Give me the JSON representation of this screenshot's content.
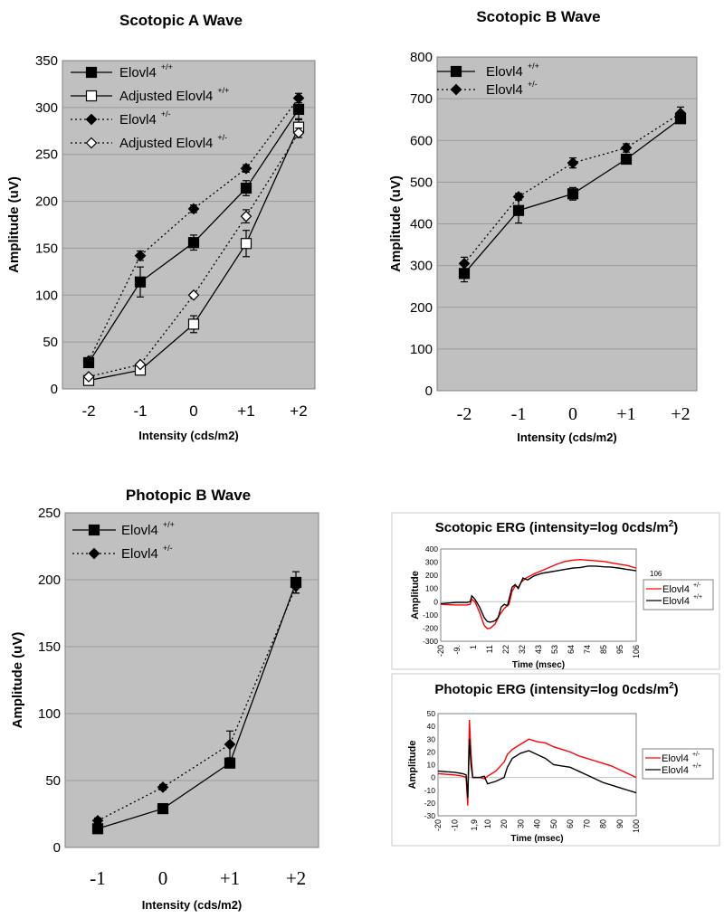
{
  "chart_data": [
    {
      "type": "line",
      "title": "Scotopic A Wave",
      "xlabel": "Intensity (cds/m2)",
      "ylabel": "Amplitude (uV)",
      "categories": [
        "-2",
        "-1",
        "0",
        "+1",
        "+2"
      ],
      "ylim": [
        0,
        350
      ],
      "yticks": [
        "0",
        "50",
        "100",
        "150",
        "200",
        "250",
        "300",
        "350"
      ],
      "grid": true,
      "legend_position": "top-left",
      "series": [
        {
          "name": "Elovl4",
          "genotype": "+/+",
          "marker": "filled-square",
          "line": "solid",
          "values": [
            28,
            114,
            156,
            214,
            298
          ],
          "error": [
            3,
            16,
            8,
            8,
            10
          ]
        },
        {
          "name": "Adjusted Elovl4",
          "genotype": "+/+",
          "marker": "open-square",
          "line": "solid",
          "values": [
            9,
            20,
            69,
            155,
            279
          ],
          "error": [
            2,
            3,
            9,
            14,
            8
          ]
        },
        {
          "name": "Elovl4",
          "genotype": "+/-",
          "marker": "filled-diamond",
          "line": "dotted",
          "values": [
            30,
            142,
            192,
            235,
            310
          ],
          "error": [
            2,
            5,
            4,
            4,
            5
          ]
        },
        {
          "name": "Adjusted Elovl4",
          "genotype": "+/-",
          "marker": "open-diamond",
          "line": "dotted",
          "values": [
            13,
            26,
            100,
            184,
            273
          ],
          "error": [
            2,
            2,
            2,
            7,
            5
          ]
        }
      ]
    },
    {
      "type": "line",
      "title": "Scotopic B Wave",
      "xlabel": "Intensity (cds/m2)",
      "ylabel": "Amplitude (uV)",
      "categories": [
        "-2",
        "-1",
        "0",
        "+1",
        "+2"
      ],
      "ylim": [
        0,
        800
      ],
      "yticks": [
        "0",
        "100",
        "200",
        "300",
        "400",
        "500",
        "600",
        "700",
        "800"
      ],
      "grid": true,
      "legend_position": "top-left",
      "series": [
        {
          "name": "Elovl4",
          "genotype": "+/+",
          "marker": "filled-square",
          "line": "solid",
          "values": [
            281,
            432,
            472,
            555,
            652
          ],
          "error": [
            20,
            30,
            15,
            8,
            8
          ]
        },
        {
          "name": "Elovl4",
          "genotype": "+/-",
          "marker": "filled-diamond",
          "line": "dotted",
          "values": [
            305,
            465,
            546,
            582,
            665
          ],
          "error": [
            15,
            8,
            12,
            10,
            15
          ]
        }
      ]
    },
    {
      "type": "line",
      "title": "Photopic B Wave",
      "xlabel": "Intensity (cds/m2)",
      "ylabel": "Amplitude (uV)",
      "categories": [
        "-1",
        "0",
        "+1",
        "+2"
      ],
      "ylim": [
        0,
        250
      ],
      "yticks": [
        "0",
        "50",
        "100",
        "150",
        "200",
        "250"
      ],
      "grid": true,
      "legend_position": "top-left",
      "series": [
        {
          "name": "Elovl4",
          "genotype": "+/+",
          "marker": "filled-square",
          "line": "solid",
          "values": [
            14,
            29,
            63,
            198
          ],
          "error": [
            2,
            2,
            2,
            8
          ]
        },
        {
          "name": "Elovl4",
          "genotype": "+/-",
          "marker": "filled-diamond",
          "line": "dotted",
          "values": [
            20,
            45,
            77,
            195
          ],
          "error": [
            2,
            2,
            10,
            5
          ]
        }
      ]
    },
    {
      "type": "line",
      "title_main": "Scotopic ERG (intensity=log 0cds/m",
      "title_sup": "2",
      "title_end": ")",
      "xlabel": "Time (msec)",
      "ylabel": "Amplitude",
      "xlim": [
        -20,
        106
      ],
      "xtick_labels": [
        "-20",
        "-9.",
        "1",
        "11",
        "22",
        "32",
        "43",
        "53",
        "64",
        "74",
        "85",
        "95",
        "106"
      ],
      "ylim": [
        -300,
        400
      ],
      "yticks": [
        "-300",
        "-200",
        "-100",
        "0",
        "100",
        "200",
        "300",
        "400"
      ],
      "legend_note": "106",
      "legend_position": "right",
      "series": [
        {
          "name": "Elovl4",
          "genotype": "+/-",
          "color": "#ff0000",
          "x": [
            -20,
            -10,
            -3,
            -1,
            0,
            2,
            5,
            8,
            10,
            12,
            15,
            18,
            21,
            24,
            26,
            28,
            30,
            32,
            35,
            40,
            45,
            50,
            55,
            60,
            65,
            70,
            75,
            80,
            85,
            90,
            95,
            100,
            106
          ],
          "y": [
            -20,
            -25,
            -25,
            -20,
            20,
            0,
            -80,
            -180,
            -205,
            -200,
            -170,
            -100,
            -50,
            -20,
            80,
            120,
            110,
            150,
            180,
            210,
            235,
            260,
            285,
            305,
            315,
            320,
            315,
            310,
            305,
            295,
            285,
            275,
            255
          ]
        },
        {
          "name": "Elovl4",
          "genotype": "+/+",
          "color": "#000000",
          "x": [
            -20,
            -10,
            -3,
            -1,
            0,
            2,
            5,
            8,
            10,
            12,
            15,
            17,
            19,
            21,
            23,
            26,
            28,
            30,
            33,
            36,
            40,
            45,
            50,
            55,
            60,
            65,
            70,
            75,
            80,
            85,
            90,
            95,
            100,
            106
          ],
          "y": [
            -15,
            -5,
            -5,
            0,
            45,
            20,
            -40,
            -120,
            -150,
            -155,
            -145,
            -120,
            -40,
            -20,
            -30,
            110,
            130,
            100,
            180,
            165,
            195,
            215,
            225,
            235,
            245,
            255,
            260,
            270,
            270,
            265,
            262,
            255,
            245,
            235
          ]
        }
      ]
    },
    {
      "type": "line",
      "title_main": "Photopic ERG (intensity=log 0cds/m",
      "title_sup": "2",
      "title_end": ")",
      "xlabel": "Time (msec)",
      "ylabel": "Amplitude",
      "xlim": [
        -20,
        100
      ],
      "xtick_values": [
        -20,
        -10,
        1.9,
        10,
        20,
        30,
        40,
        50,
        60,
        70,
        80,
        90,
        100
      ],
      "xtick_labels": [
        "-20",
        "-10",
        "1,9",
        "10",
        "20",
        "30",
        "40",
        "50",
        "60",
        "70",
        "80",
        "90",
        "100"
      ],
      "ylim": [
        -30,
        50
      ],
      "yticks": [
        "-30",
        "-20",
        "-10",
        "0",
        "10",
        "20",
        "30",
        "40",
        "50"
      ],
      "legend_position": "right",
      "series": [
        {
          "name": "Elovl4",
          "genotype": "+/-",
          "color": "#ff0000",
          "x": [
            -20,
            -10,
            -5,
            -3,
            -2,
            -1,
            0,
            1,
            5,
            8,
            10,
            15,
            20,
            22,
            25,
            30,
            35,
            40,
            45,
            50,
            55,
            60,
            65,
            70,
            75,
            80,
            85,
            90,
            95,
            100
          ],
          "y": [
            3,
            2,
            1,
            0,
            -22,
            45,
            18,
            0,
            0,
            -1,
            1,
            5,
            12,
            18,
            22,
            26,
            30,
            28,
            27,
            24,
            22,
            20,
            17,
            15,
            13,
            11,
            9,
            6,
            3,
            0
          ]
        },
        {
          "name": "Elovl4",
          "genotype": "+/+",
          "color": "#000000",
          "x": [
            -20,
            -10,
            -5,
            -3,
            -2,
            -1,
            0,
            1,
            5,
            8,
            10,
            15,
            20,
            22,
            25,
            30,
            35,
            40,
            45,
            50,
            55,
            60,
            65,
            70,
            75,
            80,
            85,
            90,
            95,
            100
          ],
          "y": [
            5,
            4,
            3,
            2,
            -16,
            30,
            10,
            0,
            0,
            1,
            -5,
            -3,
            0,
            8,
            15,
            19,
            21,
            18,
            15,
            10,
            9,
            8,
            5,
            2,
            -1,
            -4,
            -6,
            -8,
            -10,
            -12
          ]
        }
      ]
    }
  ],
  "colors": {
    "plot_bg": "#c0c0c0",
    "grid": "#9a9a9a",
    "red": "#ff0000",
    "black": "#000000"
  }
}
